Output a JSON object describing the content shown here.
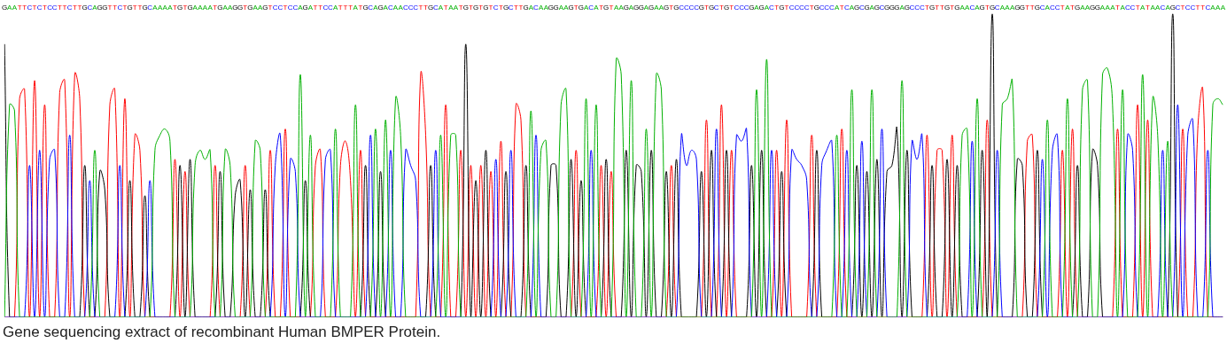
{
  "chart_data": {
    "type": "line",
    "title": "Gene sequencing extract of recombinant Human BMPER Protein.",
    "categories": [
      "G",
      "A",
      "A",
      "T",
      "T",
      "C",
      "T",
      "C",
      "T",
      "C",
      "C",
      "T",
      "T",
      "C",
      "T",
      "T",
      "G",
      "C",
      "A",
      "G",
      "G",
      "T",
      "T",
      "C",
      "T",
      "G",
      "T",
      "T",
      "G",
      "C",
      "A",
      "A",
      "A",
      "A",
      "T",
      "G",
      "T",
      "G",
      "A",
      "A",
      "A",
      "A",
      "T",
      "G",
      "A",
      "A",
      "G",
      "G",
      "T",
      "G",
      "A",
      "A",
      "G",
      "T",
      "C",
      "C",
      "T",
      "C",
      "C",
      "A",
      "G",
      "A",
      "T",
      "T",
      "C",
      "C",
      "A",
      "T",
      "T",
      "T",
      "A",
      "T",
      "G",
      "C",
      "A",
      "G",
      "A",
      "C",
      "A",
      "A",
      "C",
      "C",
      "C",
      "T",
      "T",
      "G",
      "C",
      "A",
      "T",
      "A",
      "A",
      "T",
      "G",
      "T",
      "G",
      "T",
      "G",
      "T",
      "C",
      "T",
      "G",
      "C",
      "T",
      "T",
      "G",
      "A",
      "C",
      "A",
      "A",
      "G",
      "G",
      "A",
      "A",
      "G",
      "T",
      "G",
      "A",
      "C",
      "A",
      "T",
      "G",
      "T",
      "A",
      "A",
      "G",
      "A",
      "G",
      "G",
      "A",
      "G",
      "A",
      "A",
      "G",
      "T",
      "G",
      "C",
      "C",
      "C",
      "C",
      "G",
      "T",
      "G",
      "C",
      "T",
      "G",
      "T",
      "C",
      "C",
      "C",
      "G",
      "A",
      "G",
      "A",
      "C",
      "T",
      "G",
      "T",
      "C",
      "C",
      "C",
      "C",
      "T",
      "G",
      "C",
      "C",
      "C",
      "A",
      "T",
      "C",
      "A",
      "G",
      "C",
      "G",
      "A",
      "G",
      "C",
      "G",
      "G",
      "G",
      "A",
      "G",
      "C",
      "C",
      "C",
      "T",
      "G",
      "T",
      "T",
      "G",
      "T",
      "G",
      "A",
      "A",
      "C",
      "A",
      "G",
      "T",
      "G",
      "C",
      "A",
      "A",
      "A",
      "G",
      "G",
      "T",
      "T",
      "G",
      "C",
      "A",
      "C",
      "C",
      "T",
      "A",
      "T",
      "G",
      "A",
      "A",
      "G",
      "G",
      "A",
      "A",
      "A",
      "T",
      "A",
      "C",
      "C",
      "T",
      "A",
      "T",
      "A",
      "A",
      "C",
      "A",
      "G",
      "C",
      "T",
      "C",
      "C",
      "T",
      "T",
      "C",
      "A",
      "A",
      "A"
    ],
    "series": [
      {
        "name": "A",
        "color": "#00b000",
        "values": [
          0,
          70,
          68,
          0,
          0,
          0,
          0,
          0,
          0,
          0,
          0,
          0,
          0,
          0,
          0,
          0,
          0,
          0,
          55,
          0,
          0,
          0,
          0,
          0,
          0,
          0,
          0,
          0,
          0,
          0,
          55,
          60,
          62,
          58,
          0,
          0,
          0,
          0,
          50,
          55,
          52,
          55,
          0,
          0,
          55,
          50,
          0,
          0,
          0,
          0,
          58,
          55,
          0,
          0,
          0,
          0,
          0,
          0,
          0,
          80,
          0,
          60,
          0,
          0,
          0,
          0,
          62,
          0,
          0,
          0,
          70,
          0,
          0,
          0,
          62,
          0,
          65,
          0,
          72,
          60,
          0,
          0,
          0,
          0,
          0,
          0,
          0,
          60,
          0,
          60,
          60,
          0,
          0,
          0,
          0,
          0,
          0,
          0,
          0,
          0,
          0,
          0,
          0,
          0,
          0,
          68,
          0,
          55,
          58,
          0,
          0,
          70,
          75,
          0,
          0,
          0,
          72,
          0,
          70,
          0,
          0,
          0,
          85,
          80,
          0,
          78,
          0,
          0,
          62,
          0,
          80,
          75,
          0,
          0,
          0,
          0,
          0,
          0,
          0,
          0,
          0,
          0,
          0,
          0,
          0,
          0,
          0,
          0,
          0,
          0,
          75,
          0,
          85,
          0,
          0,
          0,
          0,
          0,
          0,
          0,
          0,
          0,
          0,
          0,
          0,
          0,
          60,
          0,
          0,
          75,
          0,
          0,
          0,
          75,
          0,
          0,
          0,
          0,
          0,
          78,
          0,
          0,
          0,
          0,
          0,
          0,
          0,
          0,
          0,
          0,
          0,
          60,
          62,
          0,
          72,
          0,
          0,
          0,
          0,
          70,
          72,
          78,
          0,
          0,
          0,
          0,
          0,
          0,
          65,
          0,
          0,
          0,
          72,
          0,
          0,
          75,
          78,
          0,
          0,
          80,
          82,
          70,
          0,
          75,
          0,
          0,
          0,
          80,
          0,
          72,
          60,
          0,
          58,
          0,
          0,
          0,
          0,
          0,
          0,
          0,
          0,
          70,
          72,
          70
        ]
      },
      {
        "name": "C",
        "color": "#0000ff",
        "values": [
          0,
          0,
          0,
          0,
          0,
          50,
          0,
          55,
          0,
          52,
          55,
          0,
          0,
          60,
          0,
          0,
          0,
          45,
          0,
          0,
          0,
          0,
          0,
          50,
          0,
          0,
          0,
          0,
          0,
          45,
          0,
          0,
          0,
          0,
          0,
          0,
          0,
          0,
          0,
          0,
          0,
          0,
          0,
          0,
          0,
          0,
          0,
          0,
          0,
          0,
          0,
          0,
          0,
          0,
          50,
          60,
          0,
          52,
          48,
          0,
          0,
          0,
          0,
          0,
          52,
          55,
          0,
          0,
          0,
          0,
          0,
          0,
          0,
          60,
          0,
          0,
          0,
          55,
          0,
          0,
          55,
          50,
          45,
          0,
          0,
          0,
          55,
          0,
          0,
          0,
          0,
          0,
          0,
          0,
          0,
          0,
          0,
          0,
          52,
          0,
          0,
          55,
          0,
          0,
          0,
          0,
          60,
          0,
          0,
          0,
          0,
          0,
          0,
          0,
          0,
          0,
          0,
          55,
          0,
          0,
          0,
          0,
          0,
          0,
          0,
          0,
          0,
          0,
          0,
          0,
          0,
          0,
          0,
          0,
          0,
          60,
          50,
          55,
          52,
          0,
          0,
          0,
          62,
          0,
          0,
          0,
          60,
          58,
          62,
          0,
          0,
          0,
          0,
          55,
          0,
          0,
          0,
          55,
          52,
          50,
          45,
          0,
          0,
          50,
          55,
          58,
          0,
          0,
          55,
          0,
          0,
          58,
          0,
          0,
          0,
          62,
          0,
          0,
          0,
          0,
          0,
          58,
          52,
          60,
          0,
          0,
          0,
          0,
          0,
          0,
          0,
          0,
          0,
          58,
          0,
          0,
          0,
          0,
          55,
          0,
          0,
          0,
          0,
          0,
          0,
          0,
          0,
          52,
          0,
          55,
          60,
          0,
          0,
          0,
          0,
          0,
          0,
          0,
          0,
          0,
          0,
          0,
          0,
          0,
          60,
          55,
          0,
          0,
          0,
          0,
          0,
          55,
          0,
          0,
          70,
          0,
          60,
          65,
          0,
          0,
          55,
          0,
          0,
          0
        ]
      },
      {
        "name": "G",
        "color": "#000000",
        "values": [
          90,
          0,
          0,
          0,
          0,
          0,
          0,
          0,
          0,
          0,
          0,
          0,
          0,
          0,
          0,
          0,
          50,
          0,
          0,
          48,
          42,
          0,
          0,
          0,
          0,
          45,
          0,
          0,
          40,
          0,
          0,
          0,
          0,
          0,
          0,
          50,
          0,
          52,
          0,
          0,
          0,
          0,
          0,
          48,
          0,
          0,
          40,
          45,
          0,
          42,
          0,
          0,
          42,
          0,
          0,
          0,
          0,
          0,
          0,
          0,
          45,
          0,
          0,
          0,
          0,
          0,
          0,
          0,
          0,
          0,
          0,
          0,
          50,
          0,
          0,
          48,
          0,
          0,
          0,
          0,
          0,
          0,
          0,
          0,
          0,
          50,
          0,
          0,
          0,
          0,
          0,
          0,
          90,
          0,
          45,
          0,
          55,
          0,
          0,
          0,
          48,
          0,
          0,
          0,
          50,
          0,
          0,
          0,
          0,
          50,
          50,
          0,
          0,
          52,
          0,
          45,
          0,
          0,
          0,
          0,
          52,
          0,
          0,
          0,
          55,
          0,
          50,
          48,
          0,
          55,
          0,
          0,
          48,
          0,
          52,
          0,
          0,
          0,
          0,
          48,
          0,
          55,
          0,
          0,
          55,
          0,
          0,
          0,
          0,
          50,
          0,
          55,
          0,
          0,
          0,
          48,
          0,
          0,
          0,
          0,
          0,
          0,
          55,
          0,
          0,
          0,
          0,
          0,
          0,
          0,
          50,
          0,
          48,
          0,
          52,
          0,
          48,
          50,
          62,
          0,
          55,
          0,
          0,
          0,
          0,
          50,
          0,
          0,
          52,
          0,
          50,
          0,
          0,
          0,
          0,
          55,
          0,
          100,
          0,
          0,
          0,
          0,
          52,
          50,
          0,
          0,
          55,
          0,
          0,
          0,
          0,
          0,
          0,
          0,
          50,
          0,
          0,
          55,
          50,
          0,
          0,
          0,
          0,
          0,
          0,
          0,
          0,
          0,
          0,
          0,
          0,
          0,
          0,
          100,
          0,
          0,
          0,
          0,
          0,
          0,
          0,
          0,
          0,
          0
        ]
      },
      {
        "name": "T",
        "color": "#ff0000",
        "values": [
          0,
          0,
          0,
          72,
          75,
          0,
          78,
          0,
          70,
          0,
          0,
          74,
          78,
          0,
          80,
          72,
          0,
          0,
          0,
          0,
          0,
          70,
          75,
          0,
          72,
          0,
          60,
          55,
          0,
          0,
          0,
          0,
          0,
          0,
          52,
          0,
          48,
          0,
          0,
          0,
          0,
          0,
          50,
          0,
          0,
          0,
          0,
          0,
          50,
          0,
          0,
          0,
          0,
          55,
          0,
          0,
          62,
          0,
          0,
          0,
          0,
          0,
          50,
          55,
          0,
          0,
          0,
          50,
          58,
          45,
          0,
          55,
          0,
          0,
          0,
          0,
          0,
          0,
          0,
          0,
          0,
          0,
          0,
          80,
          60,
          0,
          0,
          0,
          70,
          0,
          0,
          55,
          0,
          50,
          0,
          50,
          0,
          48,
          0,
          58,
          0,
          0,
          70,
          65,
          0,
          0,
          0,
          0,
          0,
          0,
          0,
          0,
          0,
          0,
          55,
          0,
          0,
          0,
          0,
          50,
          0,
          48,
          0,
          0,
          0,
          0,
          0,
          0,
          0,
          0,
          0,
          0,
          0,
          50,
          0,
          0,
          0,
          0,
          0,
          0,
          65,
          0,
          0,
          70,
          0,
          55,
          0,
          0,
          0,
          0,
          0,
          0,
          0,
          0,
          55,
          0,
          65,
          0,
          0,
          0,
          0,
          60,
          0,
          0,
          0,
          0,
          0,
          62,
          0,
          0,
          0,
          0,
          0,
          0,
          0,
          0,
          0,
          0,
          0,
          0,
          0,
          0,
          0,
          0,
          60,
          0,
          55,
          55,
          0,
          60,
          0,
          0,
          0,
          0,
          0,
          0,
          65,
          0,
          0,
          0,
          0,
          0,
          0,
          0,
          58,
          60,
          0,
          0,
          0,
          0,
          0,
          55,
          0,
          62,
          0,
          0,
          0,
          0,
          0,
          0,
          0,
          0,
          62,
          0,
          0,
          0,
          70,
          0,
          65,
          0,
          0,
          0,
          0,
          0,
          0,
          62,
          0,
          0,
          62,
          75,
          0,
          0,
          0,
          0
        ]
      }
    ],
    "ylim": [
      0,
      100
    ],
    "grid": false,
    "tick_labels": "x"
  }
}
